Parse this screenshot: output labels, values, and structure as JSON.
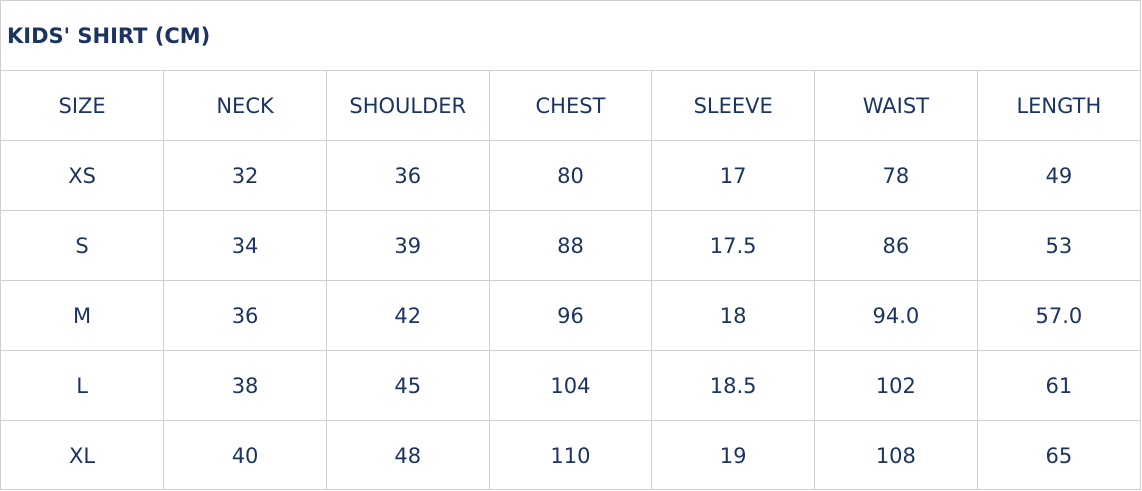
{
  "title": "KIDS' SHIRT (CM)",
  "colors": {
    "text": "#1c3461",
    "border": "#cfcfcf"
  },
  "columns": [
    "SIZE",
    "NECK",
    "SHOULDER",
    "CHEST",
    "SLEEVE",
    "WAIST",
    "LENGTH"
  ],
  "rows": [
    [
      "XS",
      "32",
      "36",
      "80",
      "17",
      "78",
      "49"
    ],
    [
      "S",
      "34",
      "39",
      "88",
      "17.5",
      "86",
      "53"
    ],
    [
      "M",
      "36",
      "42",
      "96",
      "18",
      "94.0",
      "57.0"
    ],
    [
      "L",
      "38",
      "45",
      "104",
      "18.5",
      "102",
      "61"
    ],
    [
      "XL",
      "40",
      "48",
      "110",
      "19",
      "108",
      "65"
    ]
  ]
}
